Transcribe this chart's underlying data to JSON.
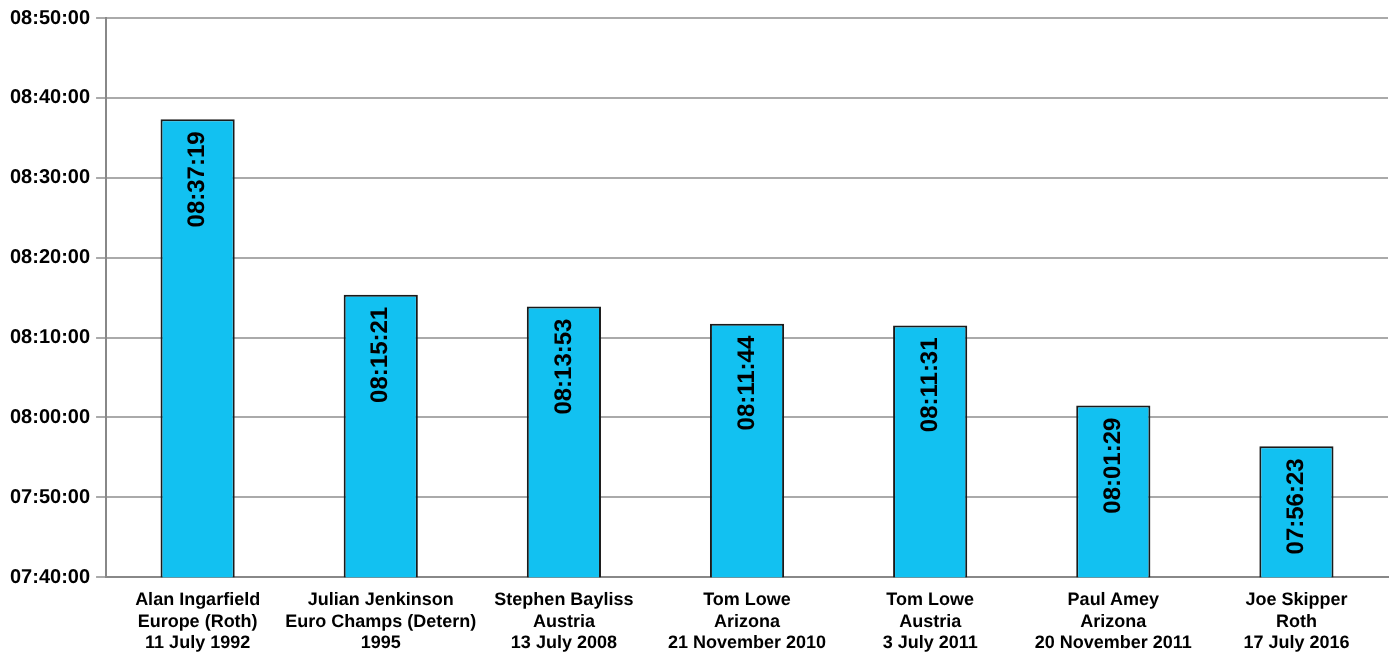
{
  "chart_data": {
    "type": "bar",
    "categories": [
      "Alan Ingarfield\nEurope (Roth)\n11 July 1992",
      "Julian Jenkinson\nEuro Champs (Detern)\n1995",
      "Stephen Bayliss\nAustria\n13 July 2008",
      "Tom Lowe\nArizona\n21 November 2010",
      "Tom Lowe\nAustria\n3 July 2011",
      "Paul Amey\nArizona\n20 November 2011",
      "Joe Skipper\nRoth\n17 July 2016"
    ],
    "values": [
      8.62194,
      8.25583,
      8.23139,
      8.19556,
      8.19194,
      8.02472,
      7.93972
    ],
    "value_labels": [
      "08:37:19",
      "08:15:21",
      "08:13:53",
      "08:11:44",
      "08:11:31",
      "08:01:29",
      "07:56:23"
    ],
    "color": "#12c1f1",
    "ylim": [
      7.666667,
      8.833333
    ],
    "yticks": [
      {
        "value": 7.666667,
        "label": "07:40:00"
      },
      {
        "value": 7.833333,
        "label": "07:50:00"
      },
      {
        "value": 8,
        "label": "08:00:00"
      },
      {
        "value": 8.166667,
        "label": "08:10:00"
      },
      {
        "value": 8.333333,
        "label": "08:20:00"
      },
      {
        "value": 8.5,
        "label": "08:30:00"
      },
      {
        "value": 8.666667,
        "label": "08:40:00"
      },
      {
        "value": 8.833333,
        "label": "08:50:00"
      }
    ],
    "grid": "y",
    "legend": false
  }
}
